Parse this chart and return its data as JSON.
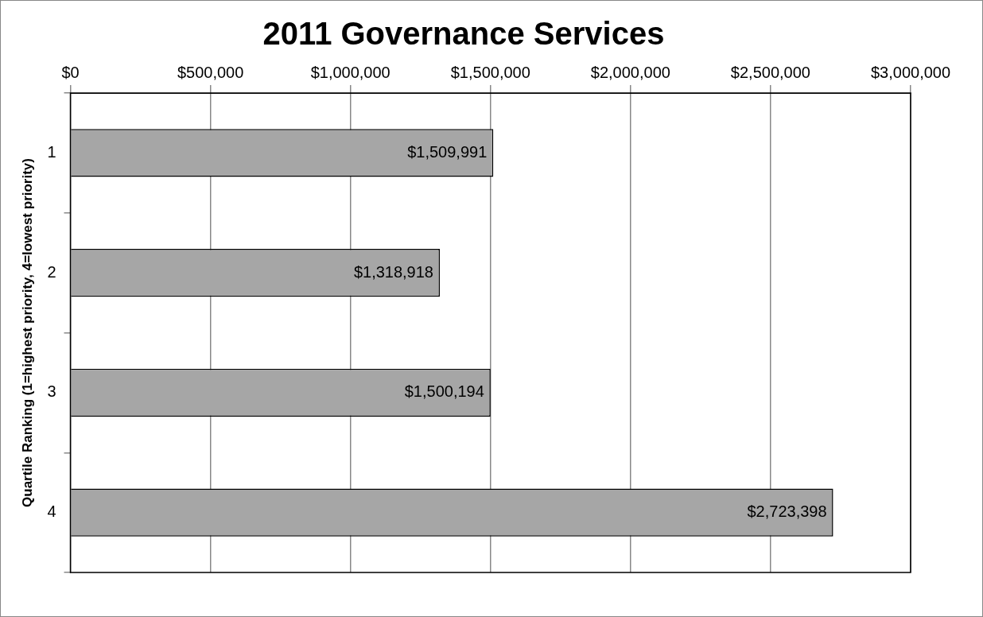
{
  "chart_data": {
    "type": "bar",
    "title": "2011 Governance Services",
    "ylabel": "Quartile Ranking (1=highest priority, 4=lowest priority)",
    "orientation": "horizontal",
    "categories": [
      "1",
      "2",
      "3",
      "4"
    ],
    "values": [
      1509991,
      1318918,
      1500194,
      2723398
    ],
    "value_labels": [
      "$1,509,991",
      "$1,318,918",
      "$1,500,194",
      "$2,723,398"
    ],
    "color": "#a6a6a6",
    "xlim": [
      0,
      3000000
    ],
    "xticks": [
      {
        "value": 0,
        "label": "$0"
      },
      {
        "value": 500000,
        "label": "$500,000"
      },
      {
        "value": 1000000,
        "label": "$1,000,000"
      },
      {
        "value": 1500000,
        "label": "$1,500,000"
      },
      {
        "value": 2000000,
        "label": "$2,000,000"
      },
      {
        "value": 2500000,
        "label": "$2,500,000"
      },
      {
        "value": 3000000,
        "label": "$3,000,000"
      }
    ],
    "grid": "x"
  }
}
